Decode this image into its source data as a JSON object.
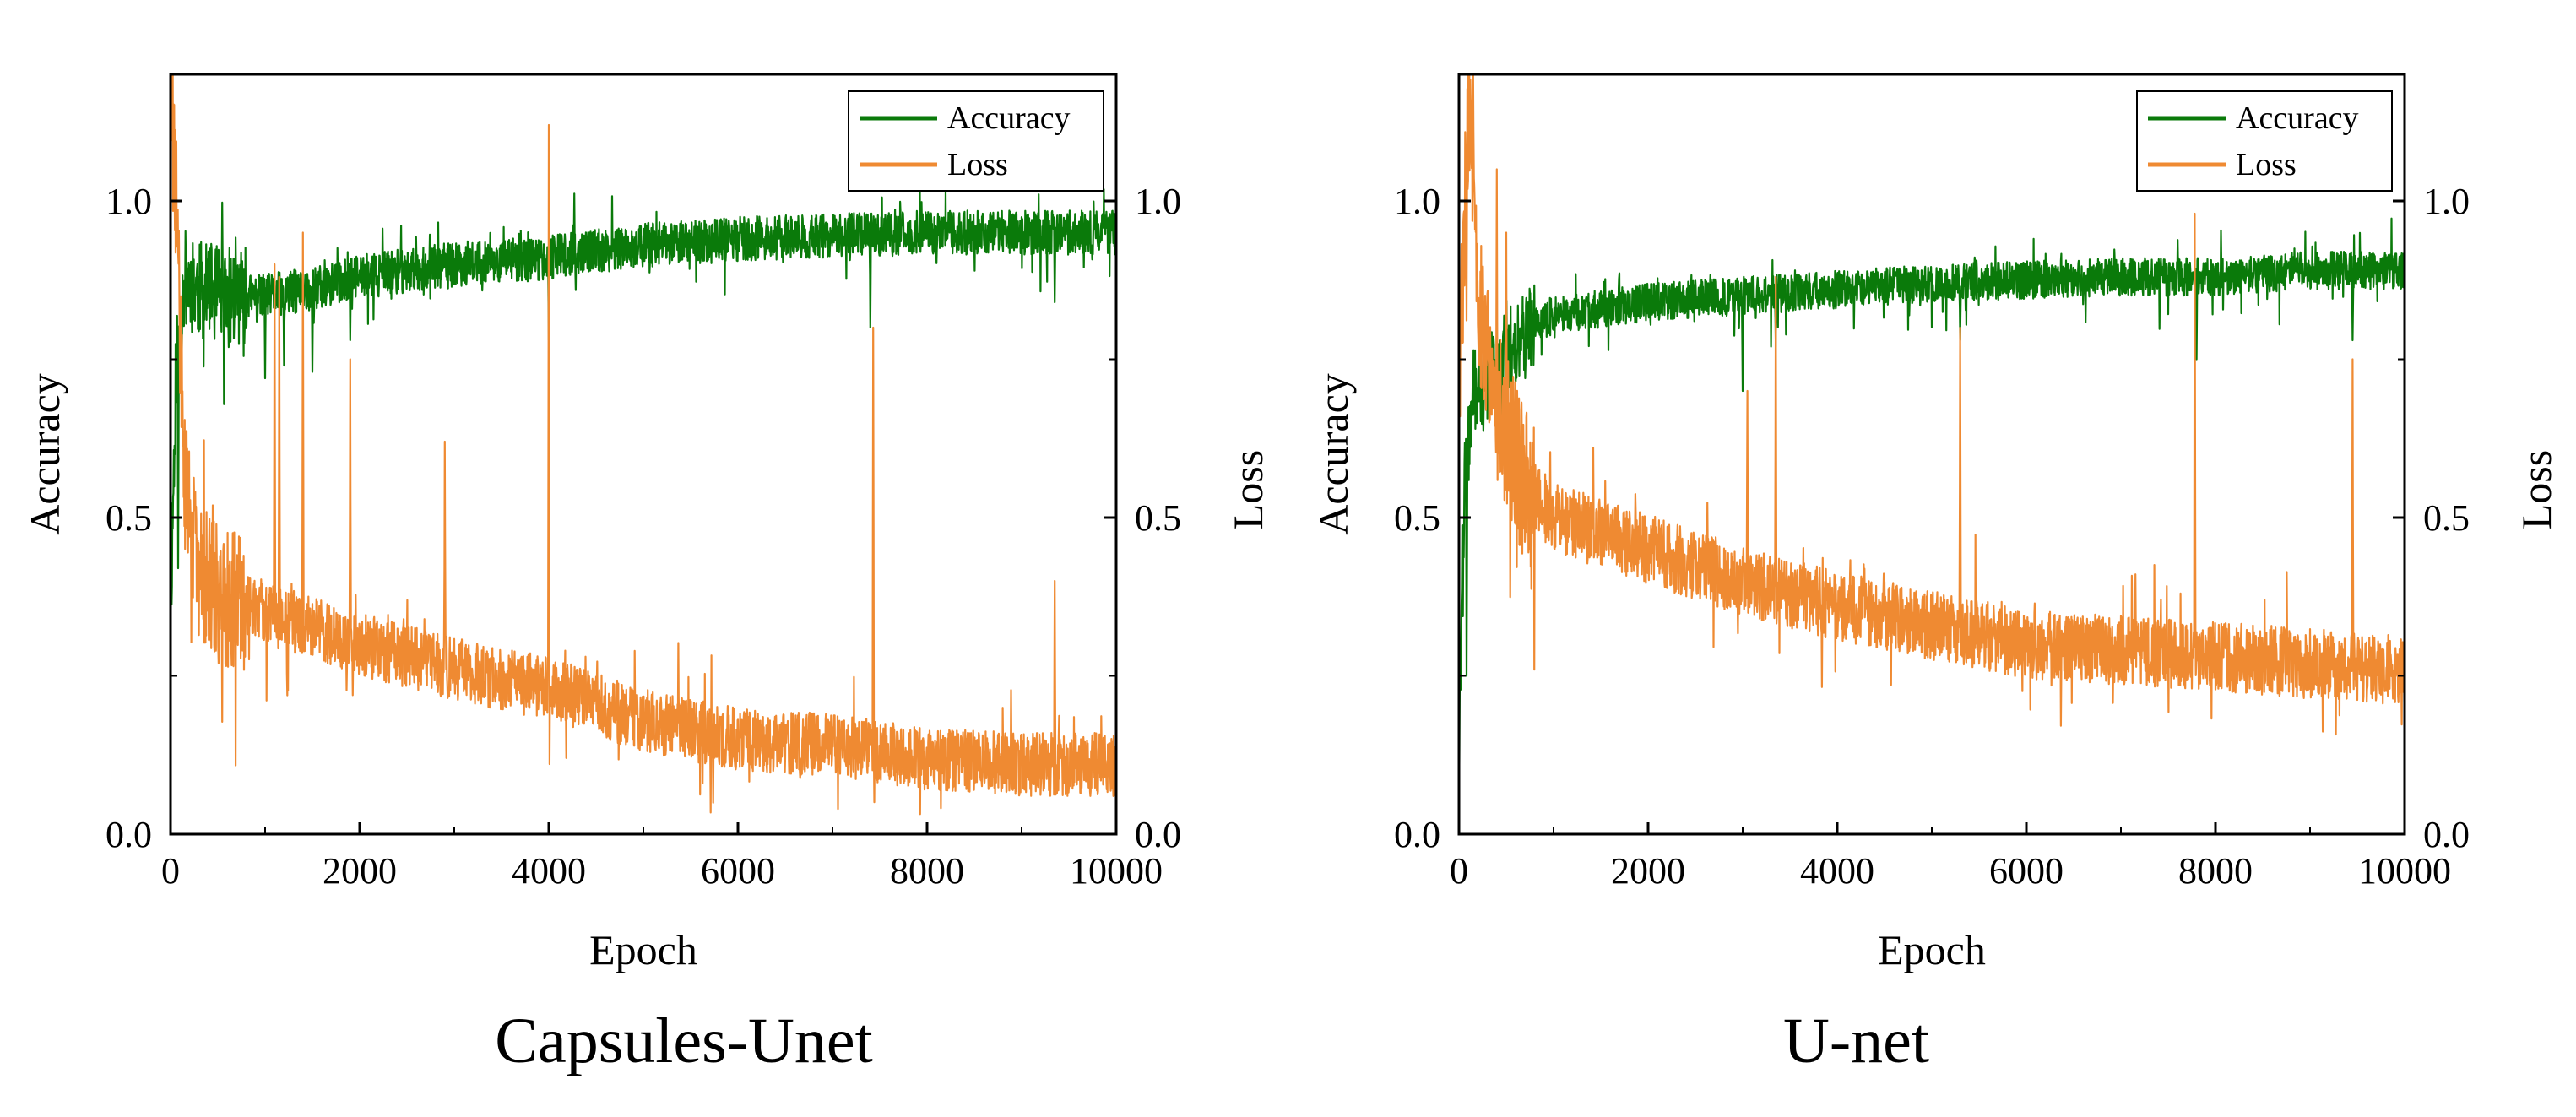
{
  "figure": {
    "colors": {
      "accuracy": "#0a7a0a",
      "loss": "#ef8a32",
      "axis": "#000000",
      "background": "#ffffff"
    }
  },
  "chart_data": [
    {
      "type": "line",
      "caption": "Capsules-Unet",
      "xlabel": "Epoch",
      "ylabel_left": "Accuracy",
      "ylabel_right": "Loss",
      "xlim": [
        0,
        10000
      ],
      "ylim_left": [
        0.0,
        1.2
      ],
      "ylim_right": [
        0.0,
        1.2
      ],
      "xticks": [
        "0",
        "2000",
        "4000",
        "6000",
        "8000",
        "10000"
      ],
      "yticks_left": [
        "0.0",
        "0.5",
        "1.0"
      ],
      "yticks_right": [
        "0.0",
        "0.5",
        "1.0"
      ],
      "legend": {
        "position": "top-right",
        "entries": [
          "Accuracy",
          "Loss"
        ]
      },
      "series": [
        {
          "name": "Accuracy",
          "axis": "left",
          "color": "#0a7a0a",
          "noise": 0.035,
          "seed": 11,
          "x": [
            0,
            60,
            150,
            300,
            600,
            1000,
            1500,
            2000,
            3000,
            4000,
            5000,
            6000,
            7000,
            8000,
            9000,
            10000
          ],
          "y": [
            0.35,
            0.75,
            0.88,
            0.86,
            0.85,
            0.85,
            0.86,
            0.88,
            0.9,
            0.91,
            0.93,
            0.94,
            0.945,
            0.95,
            0.95,
            0.95
          ],
          "spikes": [
            [
              80,
              0.42
            ],
            [
              1000,
              0.72
            ],
            [
              1200,
              0.74
            ],
            [
              1500,
              0.73
            ],
            [
              1900,
              0.78
            ],
            [
              4000,
              0.78
            ],
            [
              7400,
              0.8
            ],
            [
              9350,
              0.84
            ]
          ]
        },
        {
          "name": "Loss",
          "axis": "right",
          "color": "#ef8a32",
          "noise": 0.05,
          "seed": 29,
          "x": [
            0,
            60,
            150,
            300,
            500,
            1000,
            2000,
            3000,
            4000,
            5000,
            6000,
            7000,
            8000,
            9000,
            10000
          ],
          "y": [
            1.2,
            1.0,
            0.55,
            0.42,
            0.38,
            0.35,
            0.3,
            0.26,
            0.23,
            0.18,
            0.15,
            0.14,
            0.12,
            0.11,
            0.11
          ],
          "spikes": [
            [
              1100,
              0.9
            ],
            [
              1150,
              0.88
            ],
            [
              1400,
              0.95
            ],
            [
              1900,
              0.75
            ],
            [
              2900,
              0.62
            ],
            [
              4000,
              1.12
            ],
            [
              7430,
              0.8
            ],
            [
              9350,
              0.4
            ]
          ]
        }
      ]
    },
    {
      "type": "line",
      "caption": "U-net",
      "xlabel": "Epoch",
      "ylabel_left": "Accuracy",
      "ylabel_right": "Loss",
      "xlim": [
        0,
        10000
      ],
      "ylim_left": [
        0.0,
        1.2
      ],
      "ylim_right": [
        0.0,
        1.2
      ],
      "xticks": [
        "0",
        "2000",
        "4000",
        "6000",
        "8000",
        "10000"
      ],
      "yticks_left": [
        "0.0",
        "0.5",
        "1.0"
      ],
      "yticks_right": [
        "0.0",
        "0.5",
        "1.0"
      ],
      "legend": {
        "position": "top-right",
        "entries": [
          "Accuracy",
          "Loss"
        ]
      },
      "series": [
        {
          "name": "Accuracy",
          "axis": "left",
          "color": "#0a7a0a",
          "noise": 0.03,
          "seed": 47,
          "x": [
            0,
            60,
            150,
            300,
            700,
            1000,
            2000,
            3000,
            4000,
            5000,
            6000,
            7000,
            8000,
            9000,
            10000
          ],
          "y": [
            0.15,
            0.55,
            0.7,
            0.72,
            0.8,
            0.82,
            0.84,
            0.85,
            0.86,
            0.87,
            0.875,
            0.88,
            0.88,
            0.89,
            0.89
          ],
          "spikes": [
            [
              80,
              0.25
            ],
            [
              700,
              0.72
            ],
            [
              3000,
              0.7
            ],
            [
              3350,
              0.77
            ],
            [
              5300,
              0.78
            ],
            [
              7800,
              0.75
            ],
            [
              9450,
              0.78
            ]
          ]
        },
        {
          "name": "Loss",
          "axis": "right",
          "color": "#ef8a32",
          "noise": 0.055,
          "seed": 83,
          "x": [
            0,
            100,
            200,
            400,
            700,
            1000,
            2000,
            3000,
            4000,
            5000,
            6000,
            7000,
            8000,
            9000,
            10000
          ],
          "y": [
            0.7,
            1.15,
            0.85,
            0.68,
            0.55,
            0.5,
            0.45,
            0.4,
            0.36,
            0.33,
            0.3,
            0.29,
            0.28,
            0.27,
            0.26
          ],
          "spikes": [
            [
              150,
              1.2
            ],
            [
              400,
              1.05
            ],
            [
              500,
              0.95
            ],
            [
              3050,
              0.7
            ],
            [
              3350,
              0.88
            ],
            [
              5300,
              0.8
            ],
            [
              7780,
              0.98
            ],
            [
              9450,
              0.75
            ]
          ]
        }
      ]
    }
  ]
}
